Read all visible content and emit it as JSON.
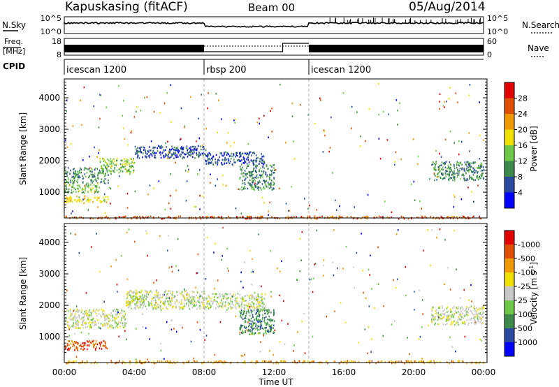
{
  "header": {
    "station": "Kapuskasing (fitACF)",
    "beam": "Beam 00",
    "date": "05/Aug/2014"
  },
  "nsky_panel": {
    "label": "N.Sky",
    "left_ticks": [
      "10^5",
      "10^0"
    ],
    "right_ticks": [
      "10^5",
      "10^0"
    ],
    "right_label": "N.Search"
  },
  "freq_panel": {
    "label_line1": "Freq.",
    "label_line2": "[MHz]",
    "left_ticks": [
      "18",
      "8"
    ],
    "right_ticks": [
      "60",
      "0"
    ],
    "right_label": "Nave"
  },
  "cpid_panel": {
    "label": "CPID",
    "segments": [
      {
        "name": "icescan 1200",
        "start_hour": 0,
        "end_hour": 8
      },
      {
        "name": "rbsp 200",
        "start_hour": 8,
        "end_hour": 14
      },
      {
        "name": "icescan 1200",
        "start_hour": 14,
        "end_hour": 24
      }
    ]
  },
  "time_axis": {
    "label": "Time UT",
    "ticks": [
      "00:00",
      "04:00",
      "08:00",
      "12:00",
      "16:00",
      "20:00",
      "00:00"
    ]
  },
  "power_colorbar": {
    "label": "Power [dB]",
    "ticks": [
      "4",
      "8",
      "12",
      "16",
      "20",
      "24",
      "28"
    ],
    "colors": [
      "#0000ff",
      "#2a4aa0",
      "#3d8a4a",
      "#6ec84a",
      "#f0e000",
      "#f09a00",
      "#e05000",
      "#e00000"
    ]
  },
  "velocity_colorbar": {
    "label": "Velocity [m s",
    "label_sup": "-1",
    "label_end": "]",
    "ticks": [
      "1000",
      "500",
      "100",
      "25",
      "-25",
      "-100",
      "-500",
      "-1000"
    ],
    "colors": [
      "#0000ff",
      "#2a4aa0",
      "#3d8a4a",
      "#6ec84a",
      "#c8c8c8",
      "#f0e000",
      "#f09a00",
      "#e05000",
      "#e00000"
    ]
  },
  "chart_data": [
    {
      "type": "heatmap",
      "quantity": "Power",
      "ylabel": "Slant Range [km]",
      "xlabel": "Time UT",
      "xlim": [
        0,
        24
      ],
      "ylim": [
        180,
        4600
      ],
      "yticks": [
        1000,
        2000,
        3000,
        4000
      ],
      "regions": [
        {
          "t0": 0.0,
          "t1": 2.5,
          "r0": 1300,
          "r1": 1800,
          "level": 2
        },
        {
          "t0": 0.0,
          "t1": 2.0,
          "r0": 1000,
          "r1": 1300,
          "level": 3
        },
        {
          "t0": 2.0,
          "t1": 4.0,
          "r0": 1600,
          "r1": 2100,
          "level": 3
        },
        {
          "t0": 4.0,
          "t1": 8.0,
          "r0": 2100,
          "r1": 2500,
          "level": 1
        },
        {
          "t0": 8.0,
          "t1": 11.5,
          "r0": 1900,
          "r1": 2300,
          "level": 1
        },
        {
          "t0": 10.0,
          "t1": 12.0,
          "r0": 1100,
          "r1": 1900,
          "level": 2
        },
        {
          "t0": 0.0,
          "t1": 2.5,
          "r0": 700,
          "r1": 900,
          "level": 4
        },
        {
          "t0": 21.0,
          "t1": 24.0,
          "r0": 1400,
          "r1": 2000,
          "level": 2
        },
        {
          "t0": 0.0,
          "t1": 24.0,
          "r0": 180,
          "r1": 260,
          "level": 6
        }
      ]
    },
    {
      "type": "heatmap",
      "quantity": "Velocity",
      "ylabel": "Slant Range [km]",
      "xlabel": "Time UT",
      "xlim": [
        0,
        24
      ],
      "ylim": [
        180,
        4600
      ],
      "yticks": [
        1000,
        2000,
        3000,
        4000
      ],
      "regions": [
        {
          "t0": 0.0,
          "t1": 3.5,
          "r0": 1300,
          "r1": 1900,
          "level": 4
        },
        {
          "t0": 3.5,
          "t1": 8.0,
          "r0": 1900,
          "r1": 2500,
          "level": 4
        },
        {
          "t0": 8.0,
          "t1": 11.5,
          "r0": 1900,
          "r1": 2400,
          "level": 4
        },
        {
          "t0": 10.0,
          "t1": 12.0,
          "r0": 1100,
          "r1": 1900,
          "level": 2
        },
        {
          "t0": 0.0,
          "t1": 2.5,
          "r0": 600,
          "r1": 900,
          "level": 7
        },
        {
          "t0": 21.0,
          "t1": 24.0,
          "r0": 1400,
          "r1": 2000,
          "level": 4
        },
        {
          "t0": 0.0,
          "t1": 24.0,
          "r0": 180,
          "r1": 260,
          "level": 6
        }
      ]
    }
  ]
}
